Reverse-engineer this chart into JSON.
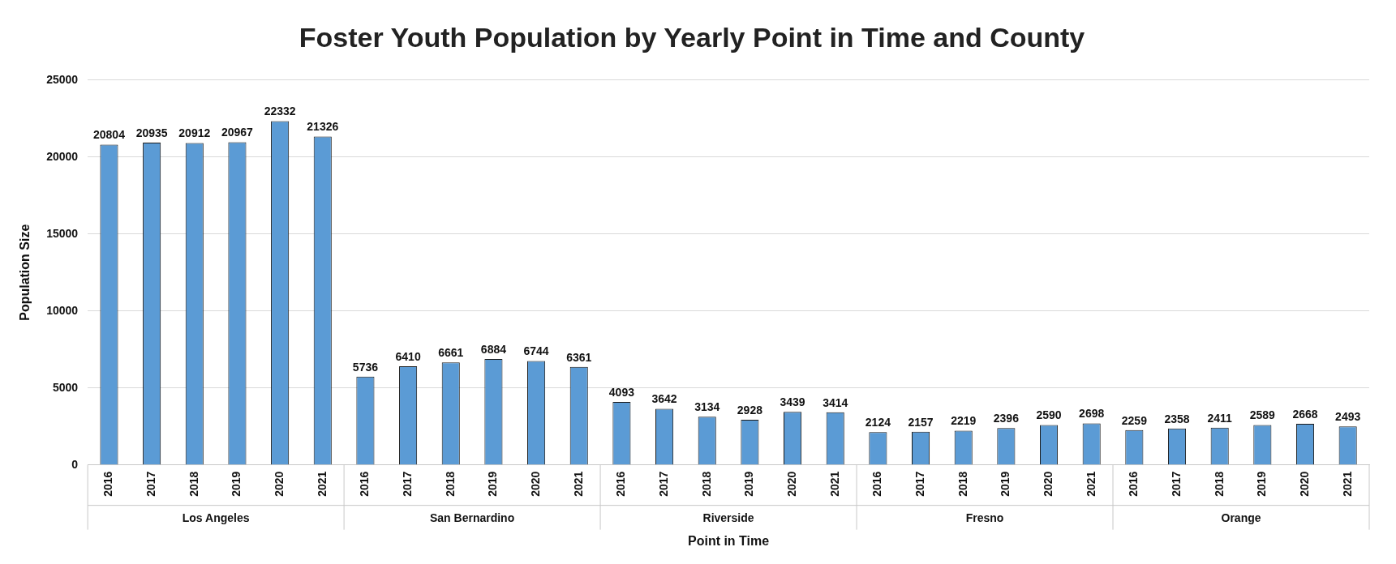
{
  "chart_data": {
    "type": "bar",
    "title": "Foster Youth Population by Yearly Point in Time and County",
    "xlabel": "Point in Time",
    "ylabel": "Population Size",
    "categories": [
      "2016",
      "2017",
      "2018",
      "2019",
      "2020",
      "2021",
      "2016",
      "2017",
      "2018",
      "2019",
      "2020",
      "2021",
      "2016",
      "2017",
      "2018",
      "2019",
      "2020",
      "2021",
      "2016",
      "2017",
      "2018",
      "2019",
      "2020",
      "2021",
      "2016",
      "2017",
      "2018",
      "2019",
      "2020",
      "2021"
    ],
    "values": [
      20804,
      20935,
      20912,
      20967,
      22332,
      21326,
      5736,
      6410,
      6661,
      6884,
      6744,
      6361,
      4093,
      3642,
      3134,
      2928,
      3439,
      3414,
      2124,
      2157,
      2219,
      2396,
      2590,
      2698,
      2259,
      2358,
      2411,
      2589,
      2668,
      2493
    ],
    "color": "#5b9bd5",
    "annotations": [
      "Los Angeles",
      "San Bernardino",
      "Riverside",
      "Fresno",
      "Orange"
    ],
    "ylim": [
      0,
      25000
    ],
    "yticks": [
      0,
      5000,
      10000,
      15000,
      20000,
      25000
    ],
    "grid": "y",
    "data_labels": true,
    "legend": false
  }
}
